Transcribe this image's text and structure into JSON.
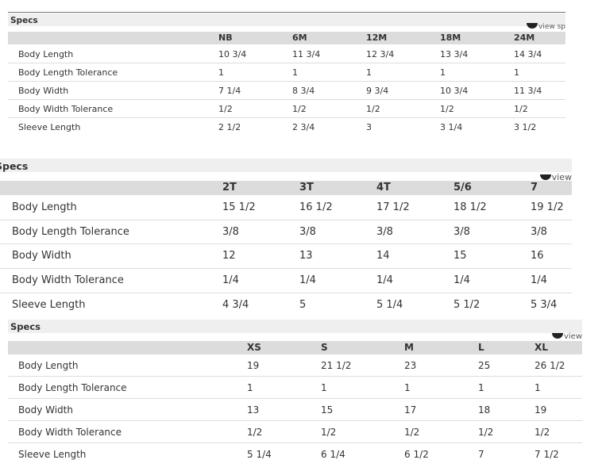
{
  "tables": [
    {
      "title": "Specs",
      "link": "view sp",
      "columns": [
        "NB",
        "6M",
        "12M",
        "18M",
        "24M"
      ],
      "rows": [
        {
          "label": "Body Length",
          "values": [
            "10 3/4",
            "11 3/4",
            "12 3/4",
            "13 3/4",
            "14 3/4"
          ]
        },
        {
          "label": "Body Length Tolerance",
          "values": [
            "1",
            "1",
            "1",
            "1",
            "1"
          ]
        },
        {
          "label": "Body Width",
          "values": [
            "7 1/4",
            "8 3/4",
            "9 3/4",
            "10 3/4",
            "11 3/4"
          ]
        },
        {
          "label": "Body Width Tolerance",
          "values": [
            "1/2",
            "1/2",
            "1/2",
            "1/2",
            "1/2"
          ]
        },
        {
          "label": "Sleeve Length",
          "values": [
            "2 1/2",
            "2 3/4",
            "3",
            "3 1/4",
            "3 1/2"
          ]
        }
      ]
    },
    {
      "title": "Specs",
      "link": "view",
      "columns": [
        "2T",
        "3T",
        "4T",
        "5/6",
        "7"
      ],
      "rows": [
        {
          "label": "Body Length",
          "values": [
            "15 1/2",
            "16 1/2",
            "17 1/2",
            "18 1/2",
            "19 1/2"
          ]
        },
        {
          "label": "Body Length Tolerance",
          "values": [
            "3/8",
            "3/8",
            "3/8",
            "3/8",
            "3/8"
          ]
        },
        {
          "label": "Body Width",
          "values": [
            "12",
            "13",
            "14",
            "15",
            "16"
          ]
        },
        {
          "label": "Body Width Tolerance",
          "values": [
            "1/4",
            "1/4",
            "1/4",
            "1/4",
            "1/4"
          ]
        },
        {
          "label": "Sleeve Length",
          "values": [
            "4 3/4",
            "5",
            "5 1/4",
            "5 1/2",
            "5 3/4"
          ]
        }
      ]
    },
    {
      "title": "Specs",
      "link": "view",
      "columns": [
        "XS",
        "S",
        "M",
        "L",
        "XL"
      ],
      "rows": [
        {
          "label": "Body Length",
          "values": [
            "19",
            "21 1/2",
            "23",
            "25",
            "26 1/2"
          ]
        },
        {
          "label": "Body Length Tolerance",
          "values": [
            "1",
            "1",
            "1",
            "1",
            "1"
          ]
        },
        {
          "label": "Body Width",
          "values": [
            "13",
            "15",
            "17",
            "18",
            "19"
          ]
        },
        {
          "label": "Body Width Tolerance",
          "values": [
            "1/2",
            "1/2",
            "1/2",
            "1/2",
            "1/2"
          ]
        },
        {
          "label": "Sleeve Length",
          "values": [
            "5 1/4",
            "6 1/4",
            "6 1/2",
            "7",
            "7 1/2"
          ]
        }
      ]
    }
  ]
}
